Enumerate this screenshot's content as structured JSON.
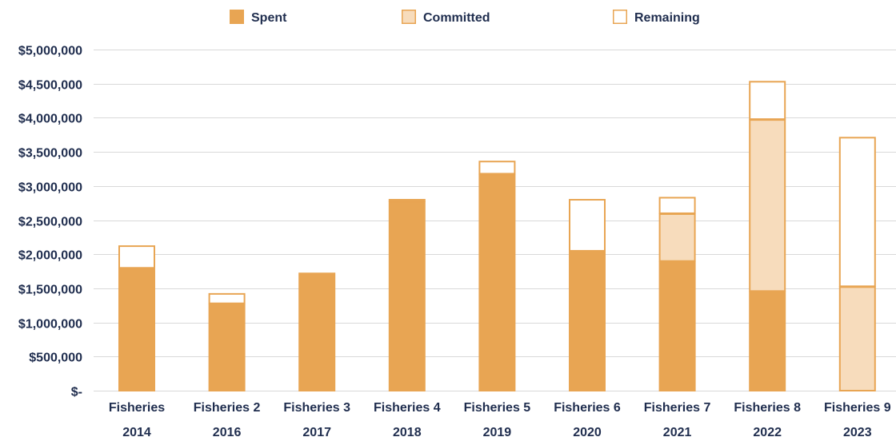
{
  "chart_data": {
    "type": "bar",
    "stacked": true,
    "categories": [
      [
        "Fisheries",
        "2014"
      ],
      [
        "Fisheries 2",
        "2016"
      ],
      [
        "Fisheries 3",
        "2017"
      ],
      [
        "Fisheries 4",
        "2018"
      ],
      [
        "Fisheries 5",
        "2019"
      ],
      [
        "Fisheries 6",
        "2020"
      ],
      [
        "Fisheries 7",
        "2021"
      ],
      [
        "Fisheries 8",
        "2022"
      ],
      [
        "Fisheries 9",
        "2023"
      ]
    ],
    "series": [
      {
        "name": "Spent",
        "fill": "#e8a553",
        "stroke": "#e8a553",
        "values": [
          1800000,
          1280000,
          1730000,
          2780000,
          3180000,
          2050000,
          1900000,
          1460000,
          0
        ]
      },
      {
        "name": "Committed",
        "fill": "#f7dcbc",
        "stroke": "#e8a553",
        "values": [
          0,
          0,
          0,
          0,
          0,
          0,
          700000,
          2520000,
          1530000
        ]
      },
      {
        "name": "Remaining",
        "fill": "#ffffff",
        "stroke": "#e8a553",
        "values": [
          330000,
          150000,
          0,
          30000,
          190000,
          760000,
          240000,
          560000,
          2190000
        ]
      }
    ],
    "ylim": [
      0,
      5000000
    ],
    "yticks": [
      {
        "value": 0,
        "label": "$-"
      },
      {
        "value": 500000,
        "label": "$500,000"
      },
      {
        "value": 1000000,
        "label": "$1,000,000"
      },
      {
        "value": 1500000,
        "label": "$1,500,000"
      },
      {
        "value": 2000000,
        "label": "$2,000,000"
      },
      {
        "value": 2500000,
        "label": "$2,500,000"
      },
      {
        "value": 3000000,
        "label": "$3,000,000"
      },
      {
        "value": 3500000,
        "label": "$3,500,000"
      },
      {
        "value": 4000000,
        "label": "$4,000,000"
      },
      {
        "value": 4500000,
        "label": "$4,500,000"
      },
      {
        "value": 5000000,
        "label": "$5,000,000"
      }
    ],
    "grid": true,
    "gridColor": "#d9d9d9",
    "textColor": "#1f2d4e",
    "legend": "top"
  }
}
